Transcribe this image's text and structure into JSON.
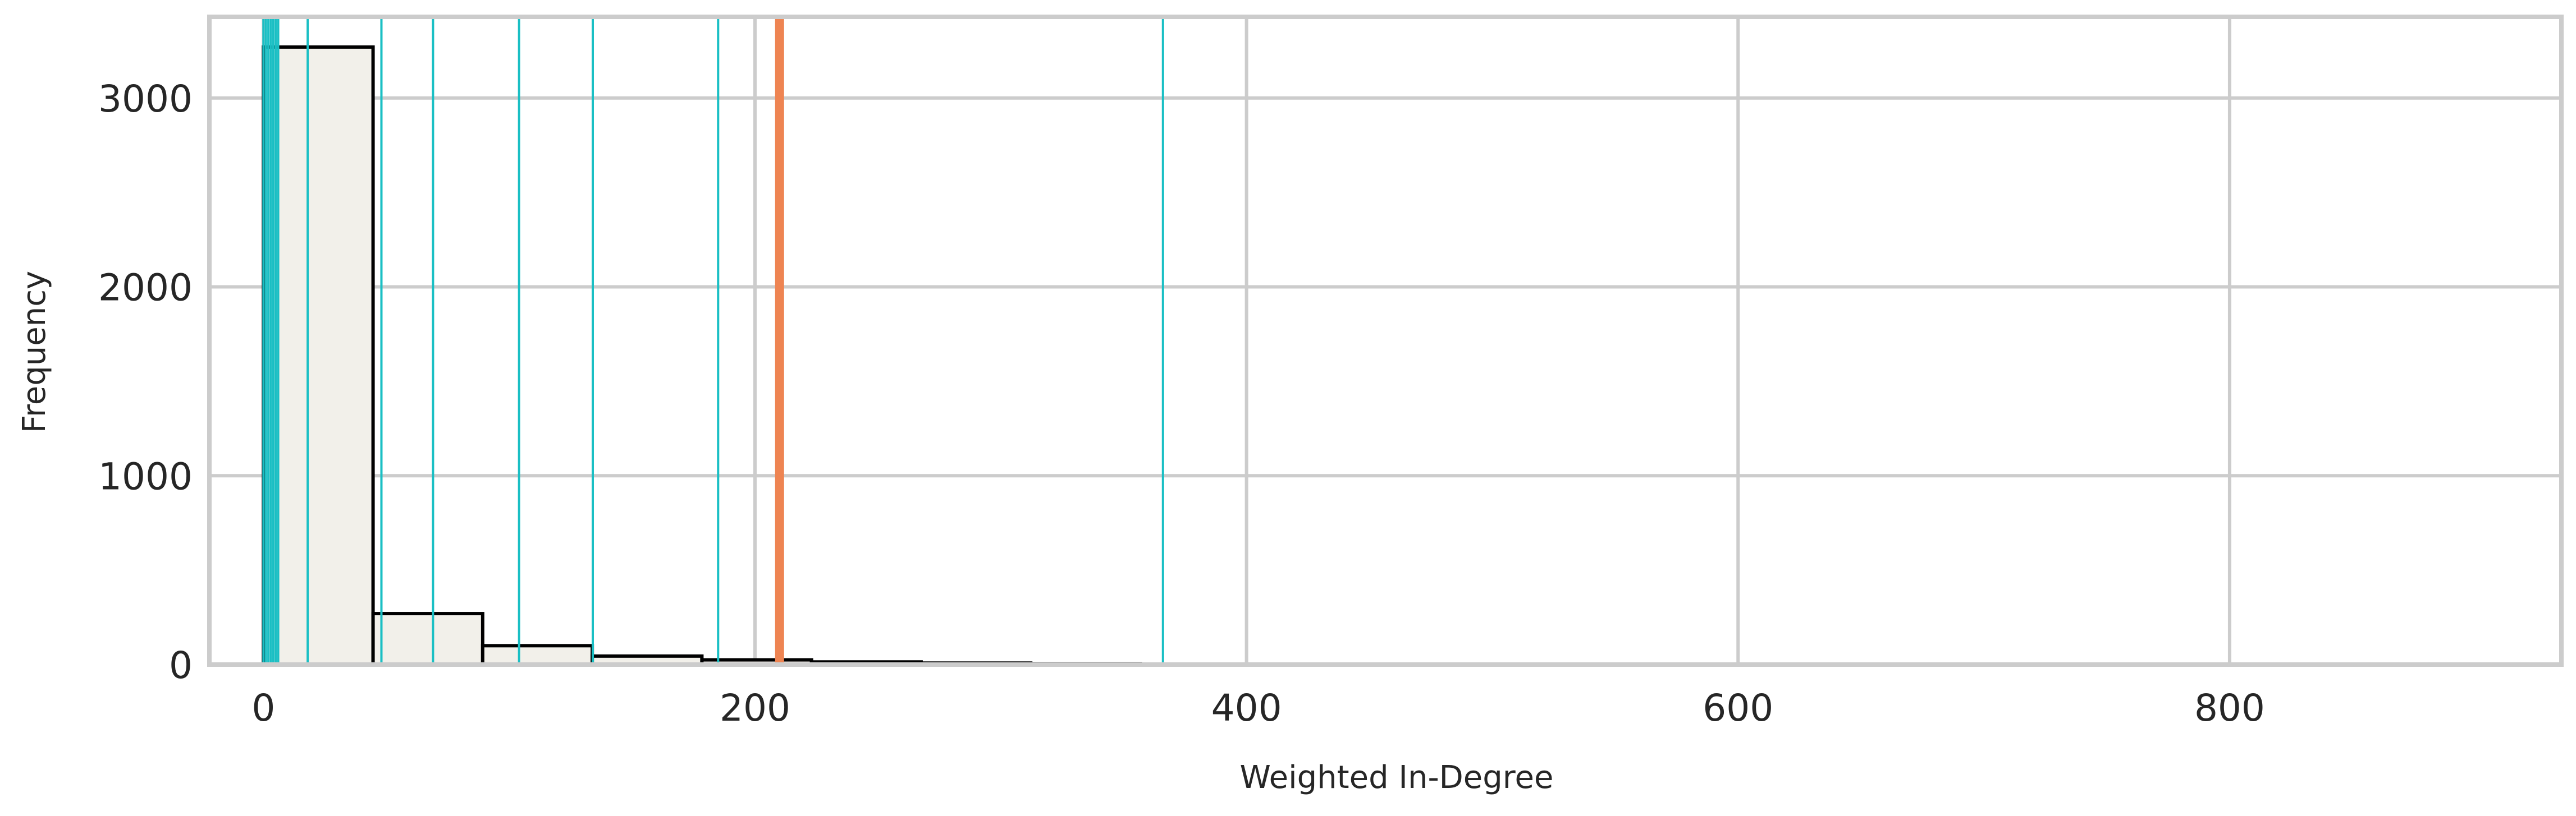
{
  "chart_data": {
    "type": "histogram",
    "xlabel": "Weighted In-Degree",
    "ylabel": "Frequency",
    "xlim": [
      -22,
      935
    ],
    "ylim": [
      0,
      3430
    ],
    "x_ticks": [
      0,
      200,
      400,
      600,
      800
    ],
    "y_ticks": [
      0,
      1000,
      2000,
      3000
    ],
    "grid": true,
    "bins": [
      {
        "x0": 0,
        "x1": 44.6,
        "count": 3270
      },
      {
        "x0": 44.6,
        "x1": 89.2,
        "count": 270
      },
      {
        "x0": 89.2,
        "x1": 133.8,
        "count": 100
      },
      {
        "x0": 133.8,
        "x1": 178.4,
        "count": 45
      },
      {
        "x0": 178.4,
        "x1": 223.0,
        "count": 25
      },
      {
        "x0": 223.0,
        "x1": 267.6,
        "count": 14
      },
      {
        "x0": 267.6,
        "x1": 312.2,
        "count": 8
      },
      {
        "x0": 312.2,
        "x1": 356.8,
        "count": 5
      },
      {
        "x0": 356.8,
        "x1": 401.4,
        "count": 3
      },
      {
        "x0": 401.4,
        "x1": 446.0,
        "count": 2
      },
      {
        "x0": 446.0,
        "x1": 490.6,
        "count": 2
      },
      {
        "x0": 490.6,
        "x1": 535.2,
        "count": 1
      },
      {
        "x0": 535.2,
        "x1": 579.8,
        "count": 1
      },
      {
        "x0": 579.8,
        "x1": 624.4,
        "count": 0
      },
      {
        "x0": 624.4,
        "x1": 669.0,
        "count": 1
      },
      {
        "x0": 669.0,
        "x1": 713.6,
        "count": 0
      },
      {
        "x0": 713.6,
        "x1": 758.2,
        "count": 0
      },
      {
        "x0": 758.2,
        "x1": 802.8,
        "count": 1
      },
      {
        "x0": 802.8,
        "x1": 847.4,
        "count": 0
      },
      {
        "x0": 847.4,
        "x1": 892.0,
        "count": 1
      }
    ],
    "vertical_lines_teal": [
      0,
      1,
      2,
      3,
      4,
      5,
      6,
      18,
      48,
      69,
      104,
      134,
      185,
      366
    ],
    "vertical_line_orange": 210,
    "colors": {
      "bar_fill": "#f2f0ea",
      "bar_edge": "#000000",
      "teal_lines": "#1abfc4",
      "orange_line": "#ee8452",
      "grid": "#cccccc"
    }
  }
}
